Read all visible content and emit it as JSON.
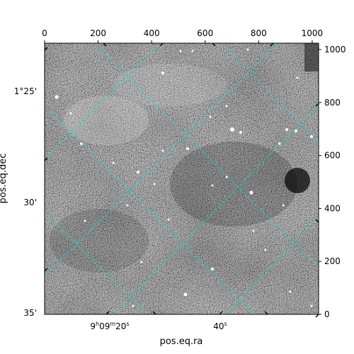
{
  "chart_data": {
    "type": "heatmap",
    "title": "",
    "xlabel": "pos.eq.ra",
    "ylabel": "pos.eq.dec",
    "pixel_axes": {
      "x_ticks": [
        0,
        200,
        400,
        600,
        800,
        1000
      ],
      "y_ticks": [
        0,
        200,
        400,
        600,
        800,
        1000
      ],
      "xlim": [
        0,
        1024
      ],
      "ylim": [
        0,
        1024
      ]
    },
    "world_axes": {
      "ra_ticks": [
        {
          "h": "9",
          "m": "09",
          "s": "20",
          "label": "9h09m20s"
        },
        {
          "s": "40",
          "label": "40s"
        }
      ],
      "dec_ticks": [
        "1°25'",
        "30'",
        "35'"
      ]
    },
    "image": {
      "colormap": "gray",
      "content": "astronomical sky image with diffuse nebulosity and point sources"
    },
    "coordinate_grid": {
      "color": "#00e5e5",
      "style": "dashed"
    }
  }
}
